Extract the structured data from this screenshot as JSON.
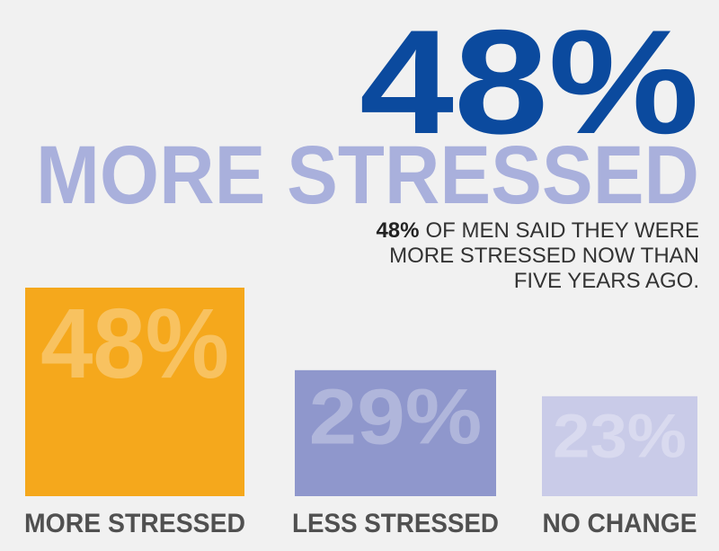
{
  "chart_data": {
    "type": "bar",
    "headline": "48%",
    "title": "MORE STRESSED",
    "subtitle_lead": "48%",
    "subtitle_lines": [
      "OF MEN SAID THEY WERE",
      "MORE STRESSED NOW THAN",
      "FIVE YEARS AGO."
    ],
    "categories": [
      "MORE STRESSED",
      "LESS STRESSED",
      "NO CHANGE"
    ],
    "values": [
      48,
      29,
      23
    ],
    "value_labels": [
      "48%",
      "29%",
      "23%"
    ],
    "colors": [
      "#f5a81c",
      "#8f97cc",
      "#c9cbe8"
    ]
  }
}
